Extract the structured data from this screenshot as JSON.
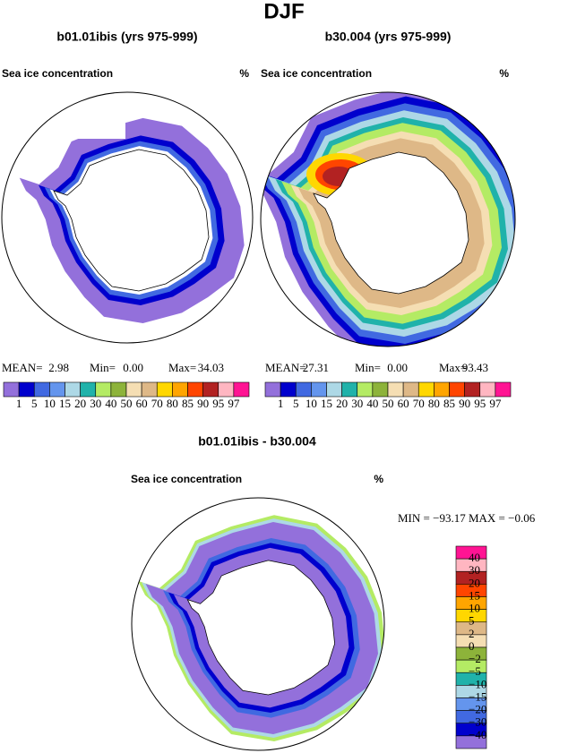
{
  "title": "DJF",
  "panels": [
    {
      "title": "b01.01ibis (yrs 975-999)",
      "variable": "Sea ice concentration",
      "units": "%",
      "stats": [
        {
          "label": "MEAN=",
          "value": "2.98"
        },
        {
          "label": "Min=",
          "value": "0.00"
        },
        {
          "label": "Max=",
          "value": "34.03"
        }
      ],
      "colorbar": {
        "labels": [
          "1",
          "5",
          "10",
          "15",
          "20",
          "30",
          "40",
          "50",
          "60",
          "70",
          "80",
          "85",
          "90",
          "95",
          "97"
        ],
        "colors": [
          "#9370db",
          "#0000cd",
          "#4169e1",
          "#6495ed",
          "#add8e6",
          "#20b2aa",
          "#b4eb64",
          "#8db33a",
          "#f5deb3",
          "#deb887",
          "#ffd700",
          "#ffa500",
          "#ff4500",
          "#b22222",
          "#ffb6c1",
          "#ff1493"
        ]
      }
    },
    {
      "title": "b30.004 (yrs 975-999)",
      "variable": "Sea ice concentration",
      "units": "%",
      "stats": [
        {
          "label": "MEAN=",
          "value": "27.31"
        },
        {
          "label": "Min=",
          "value": "0.00"
        },
        {
          "label": "Max=",
          "value": "93.43"
        }
      ],
      "colorbar": {
        "labels": [
          "1",
          "5",
          "10",
          "15",
          "20",
          "30",
          "40",
          "50",
          "60",
          "70",
          "80",
          "85",
          "90",
          "95",
          "97"
        ],
        "colors": [
          "#9370db",
          "#0000cd",
          "#4169e1",
          "#6495ed",
          "#add8e6",
          "#20b2aa",
          "#b4eb64",
          "#8db33a",
          "#f5deb3",
          "#deb887",
          "#ffd700",
          "#ffa500",
          "#ff4500",
          "#b22222",
          "#ffb6c1",
          "#ff1493"
        ]
      }
    }
  ],
  "difference": {
    "title": "b01.01ibis - b30.004",
    "variable": "Sea ice concentration",
    "units": "%",
    "range": "MIN = −93.17 MAX = −0.06",
    "colorbar": {
      "labels": [
        "40",
        "30",
        "20",
        "15",
        "10",
        "5",
        "2",
        "0",
        "−2",
        "−5",
        "−10",
        "−15",
        "−20",
        "−30",
        "−40"
      ],
      "colors": [
        "#ff1493",
        "#ffb6c1",
        "#b22222",
        "#ff4500",
        "#ffa500",
        "#ffd700",
        "#deb887",
        "#f5deb3",
        "#8db33a",
        "#b4eb64",
        "#20b2aa",
        "#add8e6",
        "#6495ed",
        "#4169e1",
        "#0000cd",
        "#9370db"
      ]
    }
  }
}
